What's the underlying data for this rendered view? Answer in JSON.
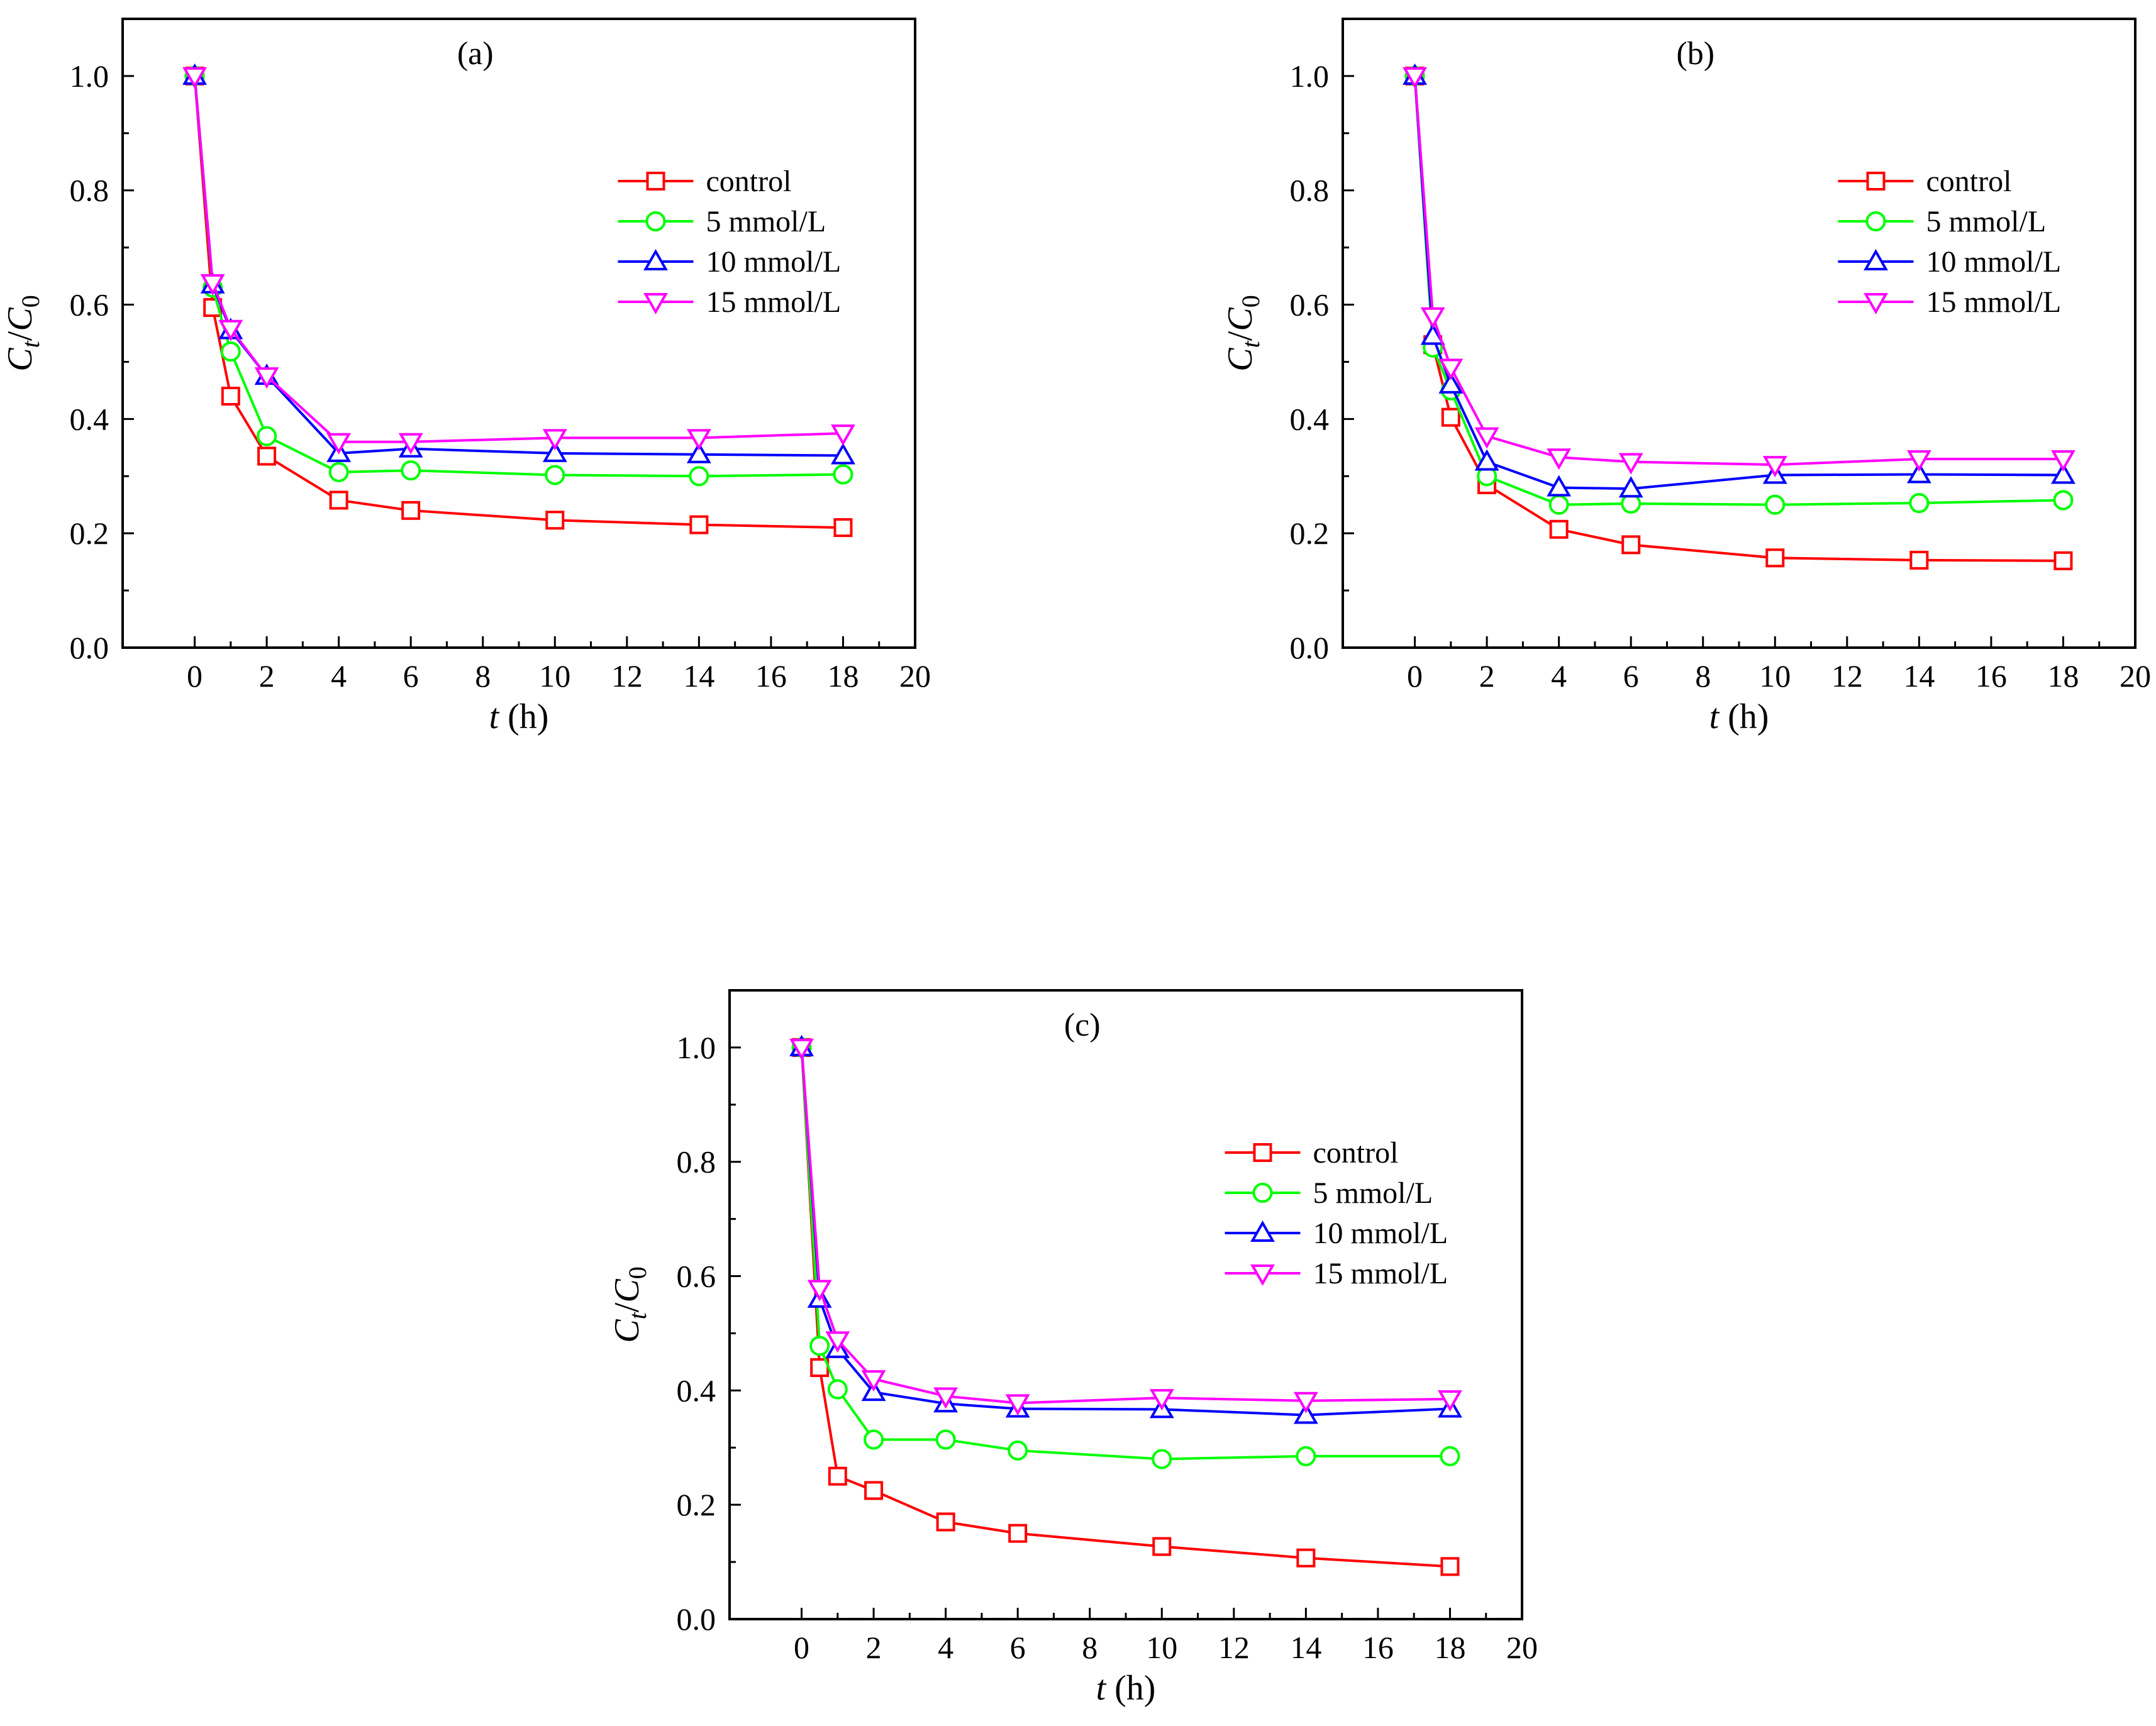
{
  "colors": {
    "control": "#ff0000",
    "5 mmol/L": "#00ff00",
    "10 mmol/L": "#0000ff",
    "15 mmol/L": "#ff00ff",
    "axis": "#000000",
    "background": "#ffffff"
  },
  "chart_data": [
    {
      "type": "line",
      "title": "(a)",
      "xlabel_italic": "t",
      "xlabel_unit": " (h)",
      "ylabel": "Ct/C0",
      "xlim": [
        -2,
        20
      ],
      "ylim": [
        0,
        1.1
      ],
      "xticks": [
        0,
        2,
        4,
        6,
        8,
        10,
        12,
        14,
        16,
        18,
        20
      ],
      "yticks": [
        0.0,
        0.2,
        0.4,
        0.6,
        0.8,
        1.0
      ],
      "ytick_labels": [
        "0.0",
        "0.2",
        "0.4",
        "0.6",
        "0.8",
        "1.0"
      ],
      "legend_position": "top-right",
      "x": [
        0,
        0.5,
        1,
        2,
        4,
        6,
        10,
        14,
        18
      ],
      "series": [
        {
          "name": "control",
          "marker": "square",
          "values": [
            1.0,
            0.595,
            0.44,
            0.335,
            0.258,
            0.24,
            0.223,
            0.215,
            0.21
          ]
        },
        {
          "name": "5 mmol/L",
          "marker": "circle",
          "values": [
            1.0,
            0.63,
            0.518,
            0.37,
            0.307,
            0.31,
            0.302,
            0.3,
            0.303
          ]
        },
        {
          "name": "10 mmol/L",
          "marker": "triangle-up",
          "values": [
            1.0,
            0.635,
            0.555,
            0.475,
            0.34,
            0.348,
            0.34,
            0.338,
            0.336
          ]
        },
        {
          "name": "15 mmol/L",
          "marker": "triangle-down",
          "values": [
            1.0,
            0.638,
            0.558,
            0.475,
            0.36,
            0.36,
            0.367,
            0.367,
            0.375
          ]
        }
      ]
    },
    {
      "type": "line",
      "title": "(b)",
      "xlabel_italic": "t",
      "xlabel_unit": " (h)",
      "ylabel": "Ct/C0",
      "xlim": [
        -2,
        20
      ],
      "ylim": [
        0,
        1.1
      ],
      "xticks": [
        0,
        2,
        4,
        6,
        8,
        10,
        12,
        14,
        16,
        18,
        20
      ],
      "yticks": [
        0.0,
        0.2,
        0.4,
        0.6,
        0.8,
        1.0
      ],
      "ytick_labels": [
        "0.0",
        "0.2",
        "0.4",
        "0.6",
        "0.8",
        "1.0"
      ],
      "legend_position": "top-right",
      "x": [
        0,
        0.5,
        1,
        2,
        4,
        6,
        10,
        14,
        18
      ],
      "series": [
        {
          "name": "control",
          "marker": "square",
          "values": [
            1.0,
            0.53,
            0.403,
            0.285,
            0.207,
            0.18,
            0.157,
            0.153,
            0.152
          ]
        },
        {
          "name": "5 mmol/L",
          "marker": "circle",
          "values": [
            1.0,
            0.525,
            0.45,
            0.3,
            0.25,
            0.252,
            0.25,
            0.253,
            0.258
          ]
        },
        {
          "name": "10 mmol/L",
          "marker": "triangle-up",
          "values": [
            1.0,
            0.545,
            0.46,
            0.325,
            0.28,
            0.278,
            0.302,
            0.303,
            0.302
          ]
        },
        {
          "name": "15 mmol/L",
          "marker": "triangle-down",
          "values": [
            1.0,
            0.58,
            0.49,
            0.37,
            0.333,
            0.325,
            0.32,
            0.33,
            0.33
          ]
        }
      ]
    },
    {
      "type": "line",
      "title": "(c)",
      "xlabel_italic": "t",
      "xlabel_unit": " (h)",
      "ylabel": "Ct/C0",
      "xlim": [
        -2,
        20
      ],
      "ylim": [
        0,
        1.1
      ],
      "xticks": [
        0,
        2,
        4,
        6,
        8,
        10,
        12,
        14,
        16,
        18,
        20
      ],
      "yticks": [
        0.0,
        0.2,
        0.4,
        0.6,
        0.8,
        1.0
      ],
      "ytick_labels": [
        "0.0",
        "0.2",
        "0.4",
        "0.6",
        "0.8",
        "1.0"
      ],
      "legend_position": "top-right",
      "x": [
        0,
        0.5,
        1,
        2,
        4,
        6,
        10,
        14,
        18
      ],
      "series": [
        {
          "name": "control",
          "marker": "square",
          "values": [
            1.0,
            0.44,
            0.25,
            0.225,
            0.17,
            0.15,
            0.127,
            0.107,
            0.092
          ]
        },
        {
          "name": "5 mmol/L",
          "marker": "circle",
          "values": [
            1.0,
            0.478,
            0.402,
            0.314,
            0.314,
            0.295,
            0.28,
            0.285,
            0.285
          ]
        },
        {
          "name": "10 mmol/L",
          "marker": "triangle-up",
          "values": [
            1.0,
            0.56,
            0.472,
            0.397,
            0.377,
            0.368,
            0.367,
            0.357,
            0.368
          ]
        },
        {
          "name": "15 mmol/L",
          "marker": "triangle-down",
          "values": [
            1.0,
            0.578,
            0.488,
            0.42,
            0.39,
            0.378,
            0.387,
            0.382,
            0.385
          ]
        }
      ]
    }
  ]
}
